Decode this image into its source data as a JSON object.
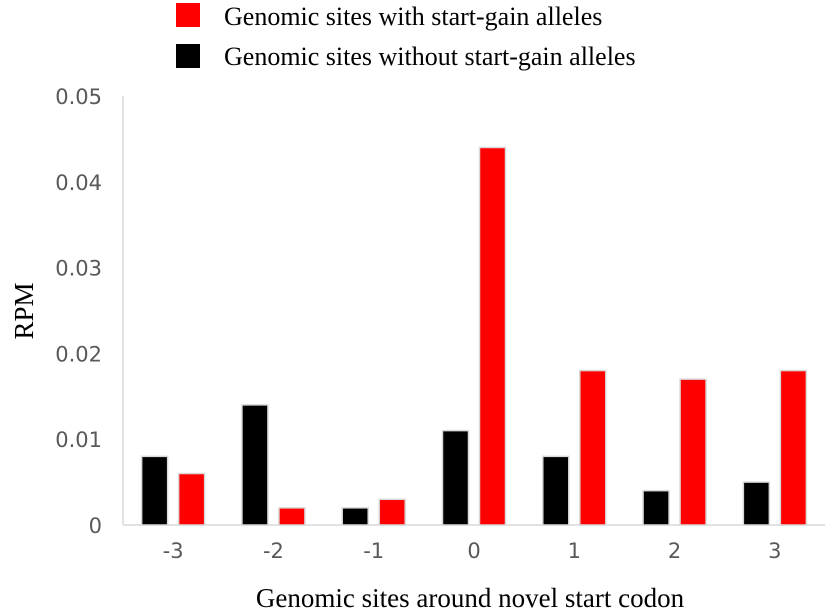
{
  "chart_data": {
    "type": "bar",
    "title": "",
    "xlabel": "Genomic sites around novel start codon",
    "ylabel": "RPM",
    "categories": [
      "-3",
      "-2",
      "-1",
      "0",
      "1",
      "2",
      "3"
    ],
    "ylim": [
      0,
      0.05
    ],
    "yticks": [
      "0",
      "0.01",
      "0.02",
      "0.03",
      "0.04",
      "0.05"
    ],
    "grid": false,
    "legend_position": "top",
    "series": [
      {
        "name": "Genomic sites without start-gain alleles",
        "color": "#000000",
        "values": [
          0.008,
          0.014,
          0.002,
          0.011,
          0.008,
          0.004,
          0.005
        ]
      },
      {
        "name": "Genomic sites with start-gain alleles",
        "color": "#ff0000",
        "values": [
          0.006,
          0.002,
          0.003,
          0.044,
          0.018,
          0.017,
          0.018
        ]
      }
    ],
    "legend_order": [
      1,
      0
    ]
  }
}
